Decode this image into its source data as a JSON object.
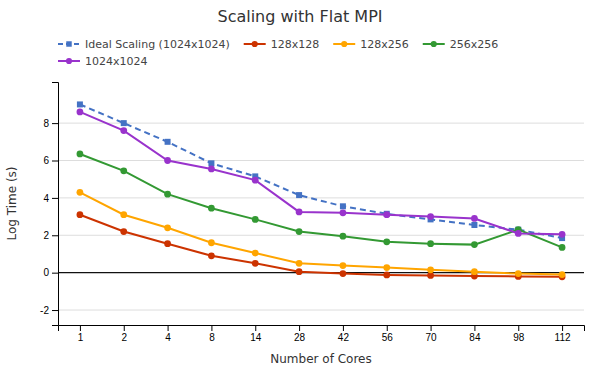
{
  "chart_data": {
    "type": "line",
    "title": "Scaling with Flat MPI",
    "x_label": "Number of Cores",
    "y_label": "Log Time (s)",
    "categories": [
      "1",
      "2",
      "4",
      "8",
      "14",
      "28",
      "42",
      "56",
      "70",
      "84",
      "98",
      "112"
    ],
    "series": [
      {
        "name": "Ideal Scaling (1024x1024)",
        "color": "#4472C4",
        "line_style": "dashed",
        "marker": "square",
        "values": [
          9.0,
          8.0,
          7.0,
          5.85,
          5.15,
          4.15,
          3.55,
          3.15,
          2.85,
          2.55,
          2.3,
          1.85
        ]
      },
      {
        "name": "128x128",
        "color": "#CC3300",
        "line_style": "solid",
        "marker": "circle",
        "values": [
          3.1,
          2.2,
          1.55,
          0.9,
          0.5,
          0.05,
          -0.05,
          -0.12,
          -0.15,
          -0.18,
          -0.2,
          -0.22
        ]
      },
      {
        "name": "128x256",
        "color": "#FFA500",
        "line_style": "solid",
        "marker": "circle",
        "values": [
          4.3,
          3.1,
          2.4,
          1.6,
          1.05,
          0.5,
          0.38,
          0.27,
          0.15,
          0.05,
          -0.05,
          -0.1
        ]
      },
      {
        "name": "256x256",
        "color": "#339933",
        "line_style": "solid",
        "marker": "circle",
        "values": [
          6.35,
          5.45,
          4.2,
          3.45,
          2.85,
          2.2,
          1.95,
          1.65,
          1.55,
          1.5,
          2.3,
          1.35
        ]
      },
      {
        "name": "1024x1024",
        "color": "#9933CC",
        "line_style": "solid",
        "marker": "circle",
        "values": [
          8.6,
          7.6,
          6.0,
          5.55,
          4.95,
          3.25,
          3.2,
          3.1,
          3.0,
          2.9,
          2.1,
          2.05
        ]
      }
    ],
    "ylim": [
      -2.8,
      10.2
    ],
    "yticks": [
      -2,
      0,
      2,
      4,
      6,
      8
    ],
    "grid": true,
    "legend": "top-left"
  }
}
